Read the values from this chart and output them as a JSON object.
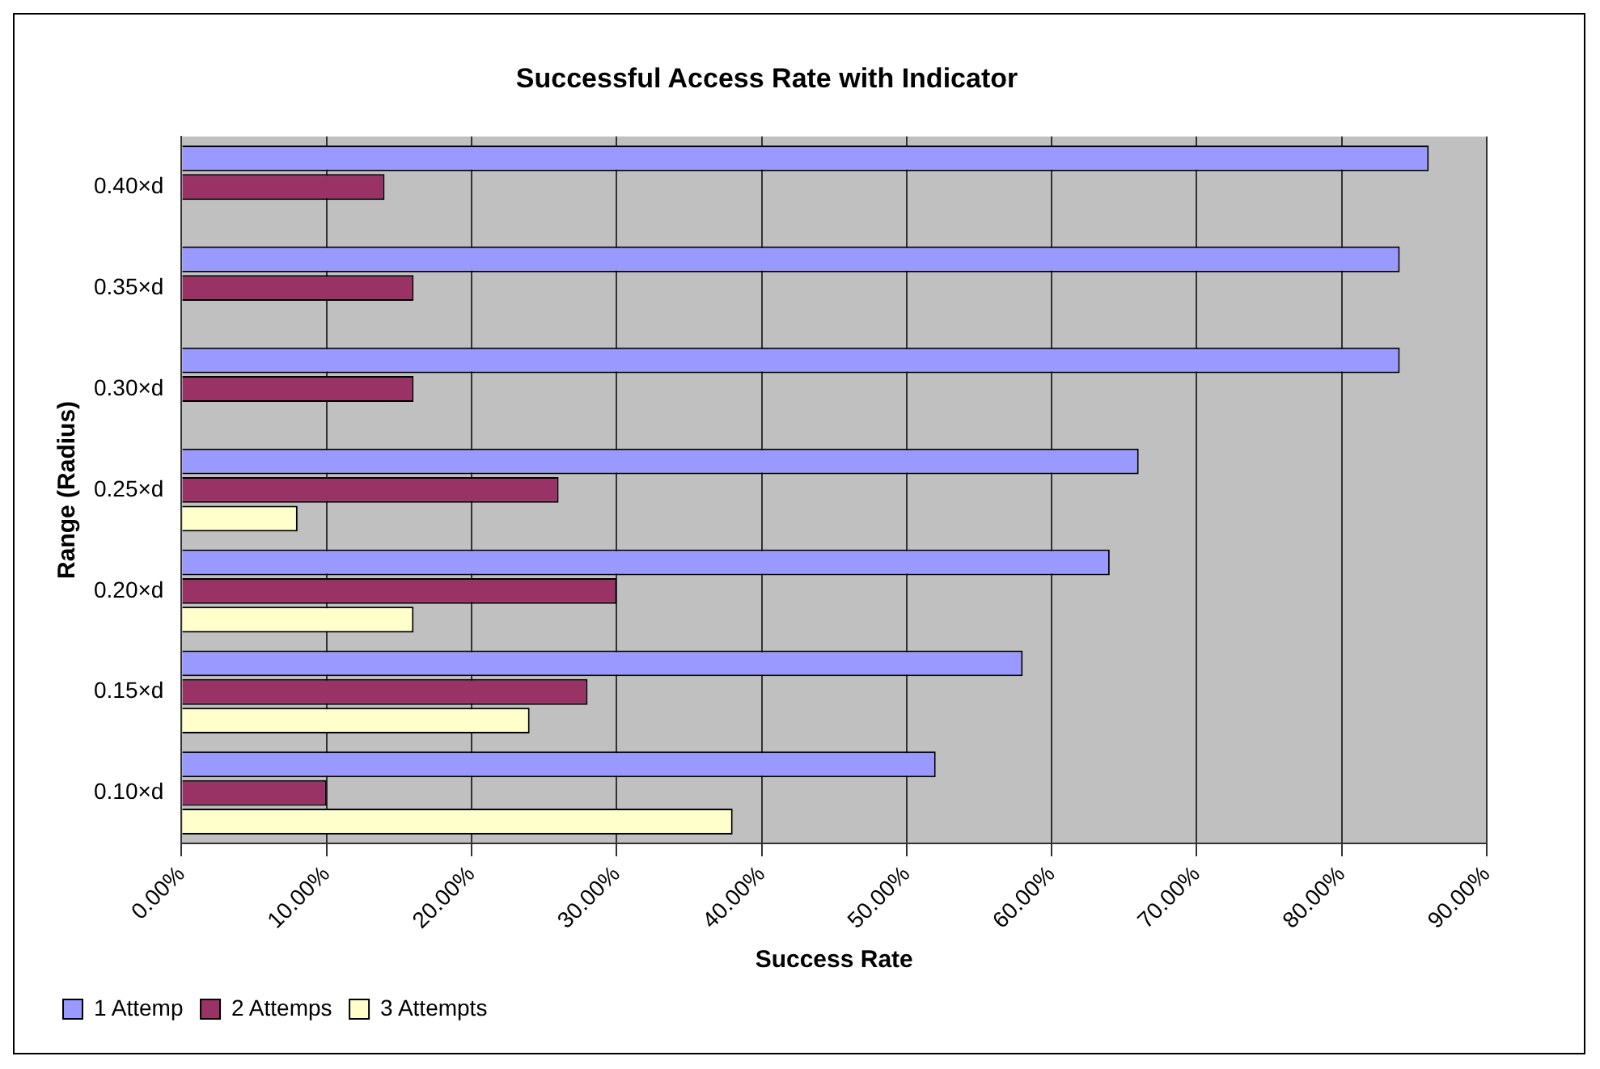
{
  "chart_data": {
    "type": "bar",
    "orientation": "horizontal",
    "title": "Successful Access Rate with Indicator",
    "xlabel": "Success Rate",
    "ylabel": "Range (Radius)",
    "categories": [
      "0.40×d",
      "0.35×d",
      "0.30×d",
      "0.25×d",
      "0.20×d",
      "0.15×d",
      "0.10×d"
    ],
    "series": [
      {
        "name": "1 Attemp",
        "color": "#9999ff",
        "values": [
          86,
          84,
          84,
          66,
          64,
          58,
          52
        ]
      },
      {
        "name": "2 Attemps",
        "color": "#993366",
        "values": [
          14,
          16,
          16,
          26,
          30,
          28,
          10
        ]
      },
      {
        "name": "3 Attempts",
        "color": "#ffffcc",
        "values": [
          0,
          0,
          0,
          8,
          16,
          24,
          38
        ]
      }
    ],
    "xlim": [
      0,
      90
    ],
    "xticks": [
      {
        "value": 0,
        "label": "0.00%"
      },
      {
        "value": 10,
        "label": "10.00%"
      },
      {
        "value": 20,
        "label": "20.00%"
      },
      {
        "value": 30,
        "label": "30.00%"
      },
      {
        "value": 40,
        "label": "40.00%"
      },
      {
        "value": 50,
        "label": "50.00%"
      },
      {
        "value": 60,
        "label": "60.00%"
      },
      {
        "value": 70,
        "label": "70.00%"
      },
      {
        "value": 80,
        "label": "80.00%"
      },
      {
        "value": 90,
        "label": "90.00%"
      }
    ],
    "grid": "x",
    "legend": "bottom"
  }
}
